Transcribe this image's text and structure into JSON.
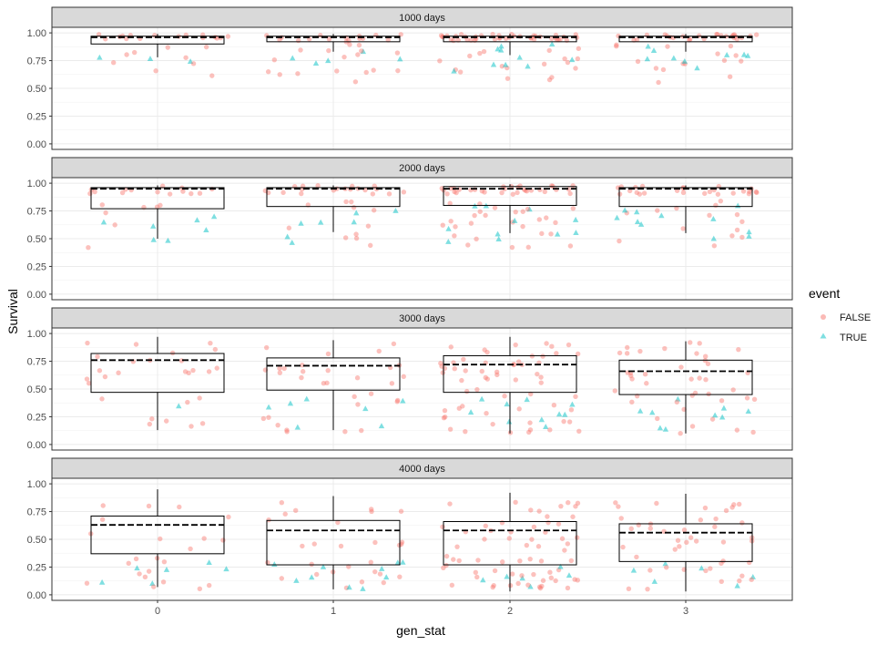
{
  "chart_data": {
    "type": "scatter",
    "subtype": "faceted jittered points with boxplots",
    "xlabel": "gen_stat",
    "ylabel": "Survival",
    "x_ticks": [
      "0",
      "1",
      "2",
      "3"
    ],
    "y_ticks": [
      "0.00",
      "0.25",
      "0.50",
      "0.75",
      "1.00"
    ],
    "ylim": [
      -0.05,
      1.05
    ],
    "legend": {
      "title": "event",
      "position": "right",
      "entries": [
        {
          "label": "FALSE",
          "color": "#F8766D",
          "shape": "circle"
        },
        {
          "label": "TRUE",
          "color": "#00BFC4",
          "shape": "triangle"
        }
      ]
    },
    "point_counts": [
      28,
      38,
      70,
      50
    ],
    "panels": [
      {
        "title": "1000 days",
        "boxes": [
          {
            "group": "0",
            "q1": 0.9,
            "median": 0.96,
            "q3": 0.97,
            "lower": 0.78,
            "upper": 0.99
          },
          {
            "group": "1",
            "q1": 0.92,
            "median": 0.96,
            "q3": 0.97,
            "lower": 0.83,
            "upper": 0.99
          },
          {
            "group": "2",
            "q1": 0.92,
            "median": 0.96,
            "q3": 0.97,
            "lower": 0.8,
            "upper": 0.99
          },
          {
            "group": "3",
            "q1": 0.92,
            "median": 0.96,
            "q3": 0.97,
            "lower": 0.83,
            "upper": 0.99
          }
        ],
        "false_band": [
          0.93,
          0.99
        ],
        "false_scatter": [
          0.55,
          0.92
        ],
        "true_scatter": [
          0.6,
          0.9
        ],
        "true_share": 0.35
      },
      {
        "title": "2000 days",
        "boxes": [
          {
            "group": "0",
            "q1": 0.77,
            "median": 0.95,
            "q3": 0.96,
            "lower": 0.5,
            "upper": 0.98
          },
          {
            "group": "1",
            "q1": 0.79,
            "median": 0.95,
            "q3": 0.96,
            "lower": 0.56,
            "upper": 0.98
          },
          {
            "group": "2",
            "q1": 0.8,
            "median": 0.95,
            "q3": 0.97,
            "lower": 0.55,
            "upper": 0.99
          },
          {
            "group": "3",
            "q1": 0.79,
            "median": 0.95,
            "q3": 0.96,
            "lower": 0.55,
            "upper": 0.98
          }
        ],
        "false_band": [
          0.9,
          0.98
        ],
        "false_scatter": [
          0.42,
          0.85
        ],
        "true_scatter": [
          0.45,
          0.82
        ],
        "true_share": 0.4
      },
      {
        "title": "3000 days",
        "boxes": [
          {
            "group": "0",
            "q1": 0.47,
            "median": 0.76,
            "q3": 0.82,
            "lower": 0.13,
            "upper": 0.97
          },
          {
            "group": "1",
            "q1": 0.49,
            "median": 0.71,
            "q3": 0.78,
            "lower": 0.13,
            "upper": 0.94
          },
          {
            "group": "2",
            "q1": 0.47,
            "median": 0.72,
            "q3": 0.8,
            "lower": 0.1,
            "upper": 0.97
          },
          {
            "group": "3",
            "q1": 0.45,
            "median": 0.66,
            "q3": 0.76,
            "lower": 0.1,
            "upper": 0.93
          }
        ],
        "false_band": [
          0.55,
          0.92
        ],
        "false_scatter": [
          0.1,
          0.5
        ],
        "true_scatter": [
          0.12,
          0.45
        ],
        "true_share": 0.35
      },
      {
        "title": "4000 days",
        "boxes": [
          {
            "group": "0",
            "q1": 0.37,
            "median": 0.63,
            "q3": 0.71,
            "lower": 0.07,
            "upper": 0.95
          },
          {
            "group": "1",
            "q1": 0.27,
            "median": 0.58,
            "q3": 0.67,
            "lower": 0.05,
            "upper": 0.89
          },
          {
            "group": "2",
            "q1": 0.27,
            "median": 0.58,
            "q3": 0.66,
            "lower": 0.03,
            "upper": 0.92
          },
          {
            "group": "3",
            "q1": 0.3,
            "median": 0.56,
            "q3": 0.64,
            "lower": 0.03,
            "upper": 0.91
          }
        ],
        "false_band": [
          0.4,
          0.85
        ],
        "false_scatter": [
          0.05,
          0.35
        ],
        "true_scatter": [
          0.05,
          0.3
        ],
        "true_share": 0.35
      }
    ]
  }
}
